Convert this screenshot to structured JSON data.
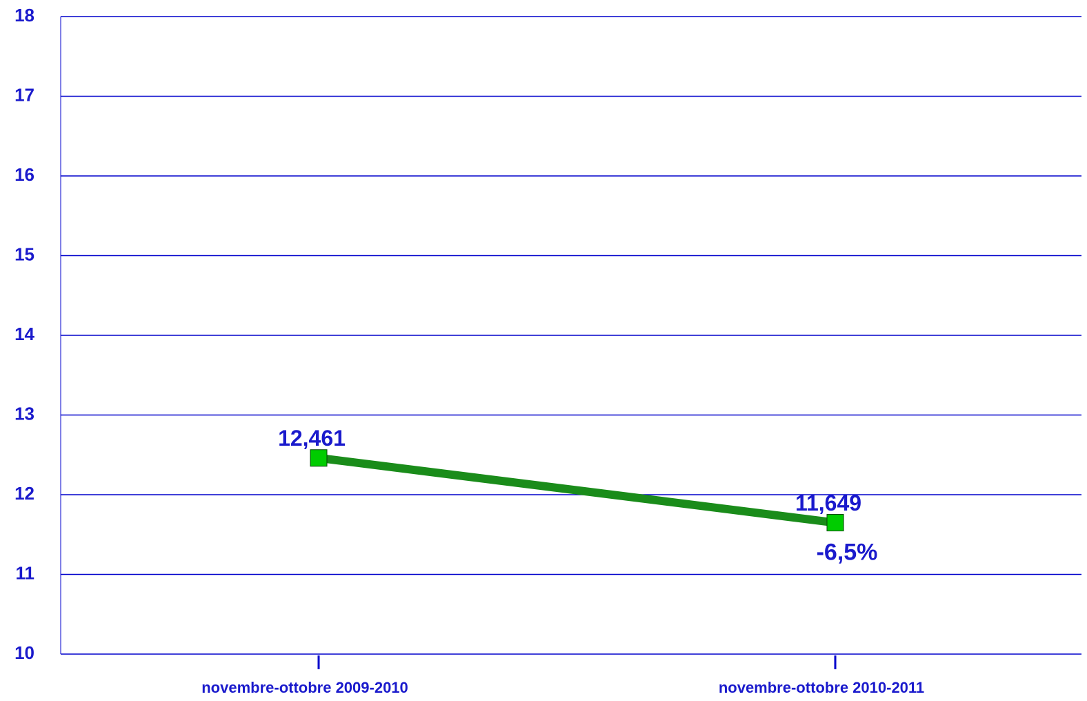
{
  "chart_data": {
    "type": "line",
    "categories": [
      "novembre-ottobre 2009-2010",
      "novembre-ottobre 2010-2011"
    ],
    "series": [
      {
        "color": "#1a8c1a",
        "marker_color": "#00cc00",
        "values": [
          12.461,
          11.649
        ],
        "value_labels": [
          "12,461",
          "11,649"
        ]
      }
    ],
    "annotation": "-6,5%",
    "ylim": [
      10,
      18
    ],
    "yticks": [
      10,
      11,
      12,
      13,
      14,
      15,
      16,
      17,
      18
    ],
    "grid": true
  }
}
